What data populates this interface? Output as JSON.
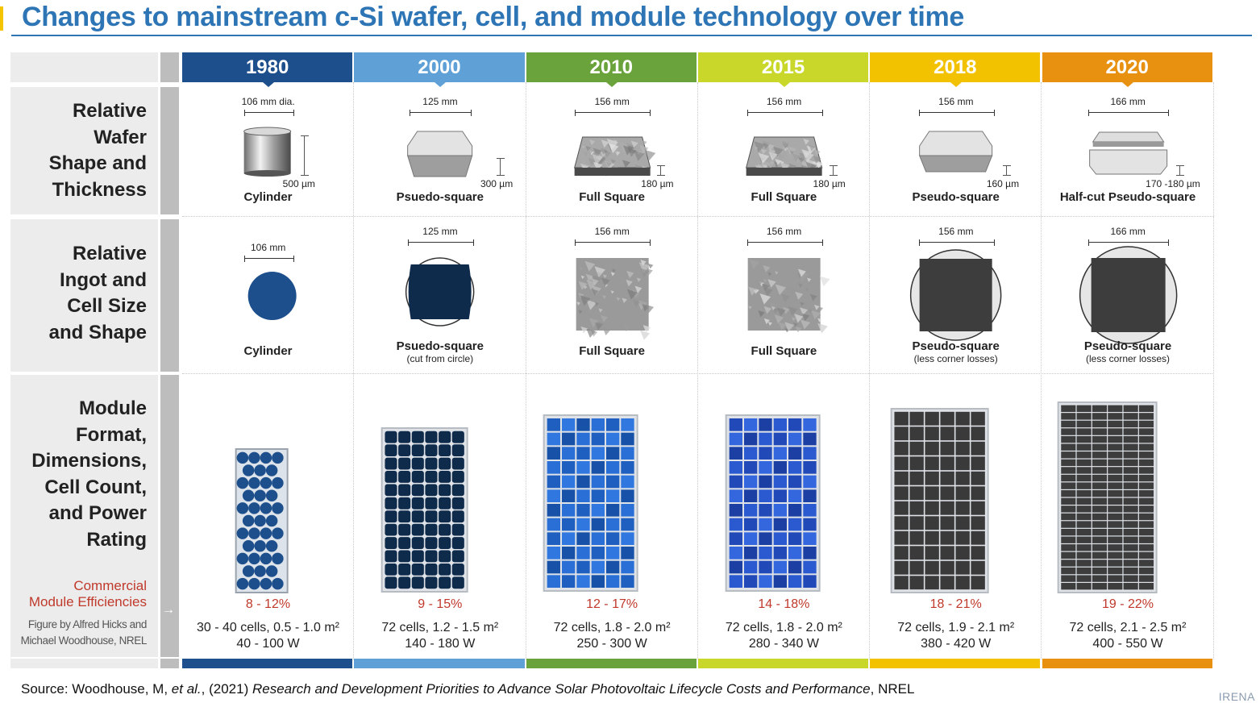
{
  "title": "Changes to mainstream c-Si wafer, cell, and module technology over time",
  "row_labels": {
    "wafer": [
      "Relative",
      "Wafer",
      "Shape and",
      "Thickness"
    ],
    "ingot": [
      "Relative",
      "Ingot and",
      "Cell Size",
      "and Shape"
    ],
    "module": [
      "Module",
      "Format,",
      "Dimensions,",
      "Cell Count,",
      "and Power",
      "Rating"
    ],
    "commercial": [
      "Commercial",
      "Module Efficiencies"
    ],
    "credit": [
      "Figure by Alfred Hicks and",
      "Michael Woodhouse, NREL"
    ]
  },
  "columns": [
    {
      "year": "1980",
      "color": "#1d4f8c",
      "wafer": {
        "width": "106 mm dia.",
        "thickness": "500 µm",
        "shape": "Cylinder"
      },
      "cell": {
        "width": "106 mm",
        "shape": "Cylinder",
        "note": ""
      },
      "module": {
        "efficiency": "8 - 12%",
        "cells_area": "30 - 40 cells, 0.5 - 1.0 m²",
        "power": "40 - 100 W"
      }
    },
    {
      "year": "2000",
      "color": "#5fa0d6",
      "wafer": {
        "width": "125 mm",
        "thickness": "300 µm",
        "shape": "Psuedo-square"
      },
      "cell": {
        "width": "125 mm",
        "shape": "Psuedo-square",
        "note": "(cut from circle)"
      },
      "module": {
        "efficiency": "9 - 15%",
        "cells_area": "72 cells, 1.2 - 1.5 m²",
        "power": "140 - 180 W"
      }
    },
    {
      "year": "2010",
      "color": "#6aa33b",
      "wafer": {
        "width": "156 mm",
        "thickness": "180 µm",
        "shape": "Full Square"
      },
      "cell": {
        "width": "156 mm",
        "shape": "Full Square",
        "note": ""
      },
      "module": {
        "efficiency": "12 - 17%",
        "cells_area": "72 cells, 1.8 - 2.0 m²",
        "power": "250 - 300 W"
      }
    },
    {
      "year": "2015",
      "color": "#c8d72a",
      "wafer": {
        "width": "156 mm",
        "thickness": "180 µm",
        "shape": "Full Square"
      },
      "cell": {
        "width": "156 mm",
        "shape": "Full Square",
        "note": ""
      },
      "module": {
        "efficiency": "14 - 18%",
        "cells_area": "72 cells, 1.8 - 2.0 m²",
        "power": "280 - 340 W"
      }
    },
    {
      "year": "2018",
      "color": "#f2c200",
      "wafer": {
        "width": "156 mm",
        "thickness": "160 µm",
        "shape": "Pseudo-square"
      },
      "cell": {
        "width": "156 mm",
        "shape": "Pseudo-square",
        "note": "(less corner losses)"
      },
      "module": {
        "efficiency": "18 - 21%",
        "cells_area": "72 cells, 1.9 - 2.1 m²",
        "power": "380 - 420 W"
      }
    },
    {
      "year": "2020",
      "color": "#e8900f",
      "wafer": {
        "width": "166 mm",
        "thickness": "170 -180 µm",
        "shape": "Half-cut Pseudo-square"
      },
      "cell": {
        "width": "166 mm",
        "shape": "Pseudo-square",
        "note": "(less corner losses)"
      },
      "module": {
        "efficiency": "19 - 22%",
        "cells_area": "72 cells, 2.1 - 2.5 m²",
        "power": "400 - 550 W"
      }
    }
  ],
  "source": {
    "prefix": "Source: Woodhouse, M, ",
    "etal": "et al.",
    "mid": ", (2021) ",
    "work": "Research and Development Priorities to Advance Solar Photovoltaic Lifecycle Costs and Performance",
    "suffix": ", NREL"
  },
  "logo": "IRENA"
}
